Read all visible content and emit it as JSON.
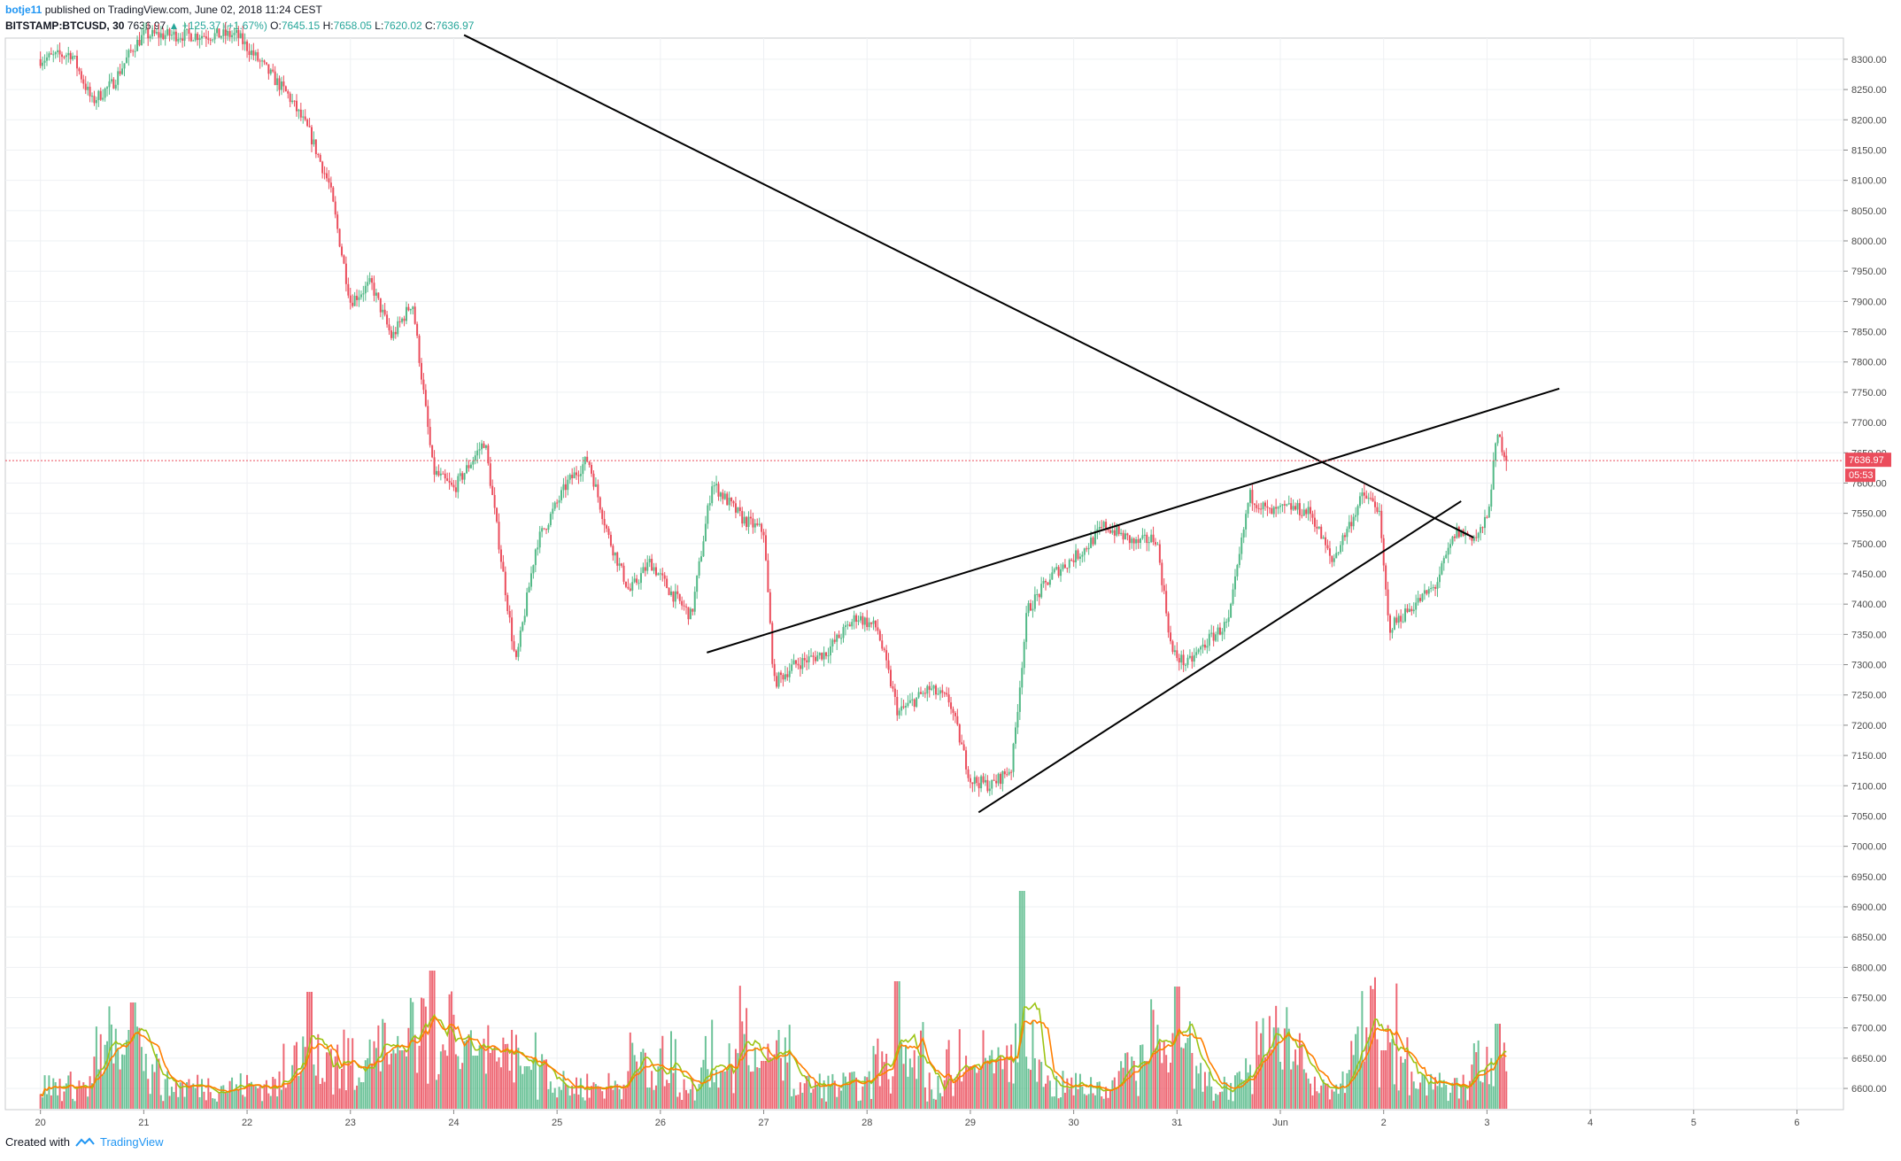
{
  "header": {
    "user": "botje11",
    "published_text": "published on TradingView.com, June 02, 2018 11:24 CEST",
    "symbol": "BITSTAMP:BTCUSD, 30",
    "last": "7636.97",
    "change": "▲ +125.37 (+1.67%)",
    "o_label": "O:",
    "o_value": "7645.15",
    "h_label": "H:",
    "h_value": "7658.05",
    "l_label": "L:",
    "l_value": "7620.02",
    "c_label": "C:",
    "c_value": "7636.97"
  },
  "footer": {
    "created_with": "Created with",
    "brand": "TradingView"
  },
  "colors": {
    "up": "#53b987",
    "down": "#eb4d5c",
    "grid": "#eef0f3",
    "axis_text": "#4a4a4a",
    "trendline": "#000000",
    "ma_orange": "#ff7f00",
    "ma_green": "#9dc414",
    "price_line": "#eb4d5c"
  },
  "chart_data": {
    "type": "candlestick",
    "symbol": "BITSTAMP:BTCUSD",
    "interval": "30",
    "ylim": [
      6565,
      8335
    ],
    "grid": true,
    "y_ticks": [
      6600,
      6650,
      6700,
      6750,
      6800,
      6850,
      6900,
      6950,
      7000,
      7050,
      7100,
      7150,
      7200,
      7250,
      7300,
      7350,
      7400,
      7450,
      7500,
      7550,
      7600,
      7650,
      7700,
      7750,
      7800,
      7850,
      7900,
      7950,
      8000,
      8050,
      8100,
      8150,
      8200,
      8250,
      8300
    ],
    "y_tick_labels": [
      "6600.00",
      "6650.00",
      "6700.00",
      "6750.00",
      "6800.00",
      "6850.00",
      "6900.00",
      "6950.00",
      "7000.00",
      "7050.00",
      "7100.00",
      "7150.00",
      "7200.00",
      "7250.00",
      "7300.00",
      "7350.00",
      "7400.00",
      "7450.00",
      "7500.00",
      "7550.00",
      "7600.00",
      "7650.00",
      "7700.00",
      "7750.00",
      "7800.00",
      "7850.00",
      "7900.00",
      "7950.00",
      "8000.00",
      "8050.00",
      "8100.00",
      "8150.00",
      "8200.00",
      "8250.00",
      "8300.00"
    ],
    "x_ticks": [
      0,
      1,
      2,
      3,
      4,
      5,
      6,
      7,
      8,
      9,
      10,
      11,
      12,
      13,
      14,
      15,
      16,
      17
    ],
    "x_tick_labels": [
      "20",
      "21",
      "22",
      "23",
      "24",
      "25",
      "26",
      "27",
      "28",
      "29",
      "30",
      "31",
      "Jun",
      "2",
      "3",
      "4",
      "5",
      "6"
    ],
    "x_range_days": [
      -0.34,
      17.45
    ],
    "last_price_label": "7636.97",
    "countdown_label": "05:53",
    "last_price": 7636.97,
    "price_path": [
      [
        0.0,
        8300
      ],
      [
        0.3,
        8310
      ],
      [
        0.5,
        8230
      ],
      [
        0.7,
        8260
      ],
      [
        0.9,
        8320
      ],
      [
        1.0,
        8340
      ],
      [
        1.9,
        8340
      ],
      [
        2.1,
        8300
      ],
      [
        2.4,
        8240
      ],
      [
        2.6,
        8180
      ],
      [
        2.8,
        8090
      ],
      [
        3.0,
        7900
      ],
      [
        3.2,
        7930
      ],
      [
        3.4,
        7840
      ],
      [
        3.6,
        7900
      ],
      [
        3.8,
        7620
      ],
      [
        4.0,
        7590
      ],
      [
        4.3,
        7670
      ],
      [
        4.6,
        7300
      ],
      [
        4.8,
        7500
      ],
      [
        5.1,
        7600
      ],
      [
        5.3,
        7640
      ],
      [
        5.5,
        7510
      ],
      [
        5.7,
        7420
      ],
      [
        5.9,
        7470
      ],
      [
        6.1,
        7420
      ],
      [
        6.3,
        7380
      ],
      [
        6.5,
        7600
      ],
      [
        6.8,
        7540
      ],
      [
        7.0,
        7520
      ],
      [
        7.1,
        7270
      ],
      [
        7.3,
        7300
      ],
      [
        7.6,
        7320
      ],
      [
        7.9,
        7380
      ],
      [
        8.1,
        7360
      ],
      [
        8.3,
        7220
      ],
      [
        8.6,
        7260
      ],
      [
        8.8,
        7240
      ],
      [
        9.0,
        7110
      ],
      [
        9.2,
        7100
      ],
      [
        9.4,
        7130
      ],
      [
        9.55,
        7390
      ],
      [
        9.8,
        7450
      ],
      [
        10.1,
        7490
      ],
      [
        10.3,
        7530
      ],
      [
        10.6,
        7500
      ],
      [
        10.8,
        7510
      ],
      [
        10.95,
        7320
      ],
      [
        11.1,
        7300
      ],
      [
        11.3,
        7340
      ],
      [
        11.5,
        7370
      ],
      [
        11.7,
        7580
      ],
      [
        11.9,
        7550
      ],
      [
        12.1,
        7560
      ],
      [
        12.3,
        7550
      ],
      [
        12.5,
        7470
      ],
      [
        12.8,
        7580
      ],
      [
        12.95,
        7560
      ],
      [
        13.05,
        7360
      ],
      [
        13.3,
        7400
      ],
      [
        13.5,
        7430
      ],
      [
        13.7,
        7520
      ],
      [
        13.9,
        7510
      ],
      [
        14.0,
        7540
      ],
      [
        14.1,
        7680
      ],
      [
        14.2,
        7637
      ]
    ],
    "volume": {
      "ylim_pixel_note": "",
      "spikes": [
        [
          0.75,
          640
        ],
        [
          0.9,
          800
        ],
        [
          2.6,
          820
        ],
        [
          3.1,
          650
        ],
        [
          3.5,
          710
        ],
        [
          3.8,
          860
        ],
        [
          4.2,
          700
        ],
        [
          4.7,
          680
        ],
        [
          5.9,
          640
        ],
        [
          6.6,
          670
        ],
        [
          7.0,
          690
        ],
        [
          8.3,
          840
        ],
        [
          9.0,
          680
        ],
        [
          9.5,
          1010
        ],
        [
          10.7,
          690
        ],
        [
          11.0,
          830
        ],
        [
          11.9,
          690
        ],
        [
          12.0,
          650
        ],
        [
          12.9,
          820
        ],
        [
          13.0,
          710
        ],
        [
          14.1,
          760
        ]
      ]
    },
    "trendlines": [
      {
        "from": [
          4.1,
          8340
        ],
        "to": [
          13.87,
          7510
        ]
      },
      {
        "from": [
          6.45,
          7320
        ],
        "to": [
          14.7,
          7756
        ]
      },
      {
        "from": [
          9.08,
          7056
        ],
        "to": [
          13.75,
          7570
        ]
      }
    ]
  }
}
